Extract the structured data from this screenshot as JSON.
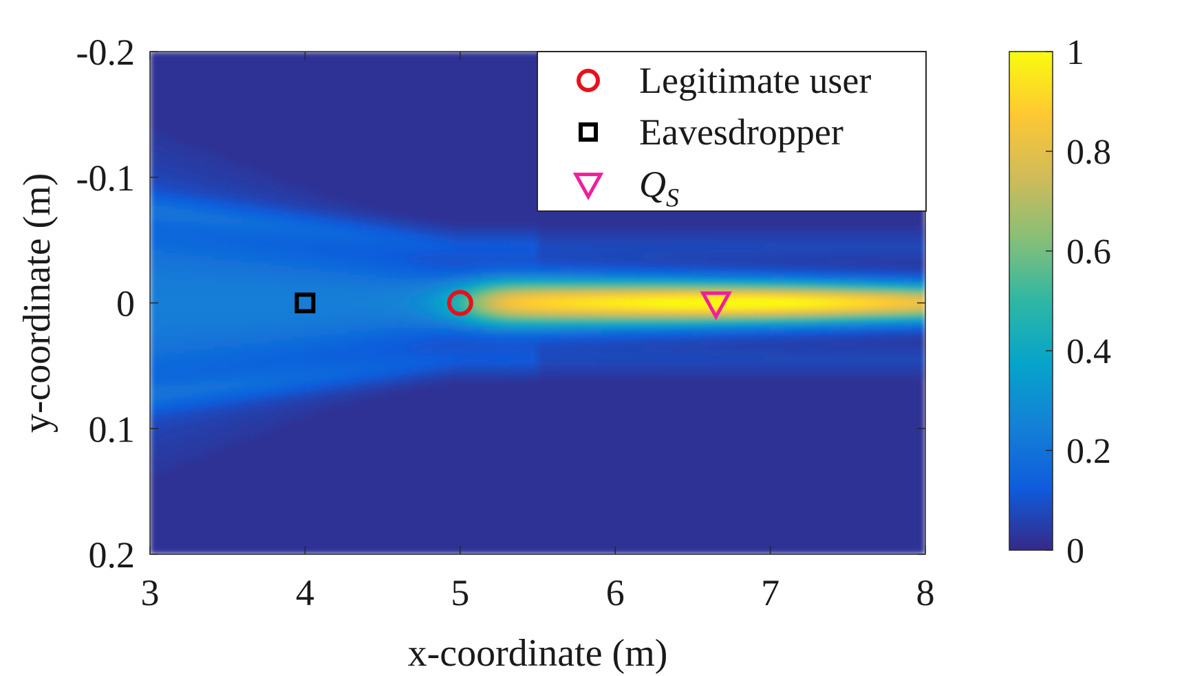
{
  "chart_data": {
    "type": "heatmap",
    "title": "",
    "xlabel": "x-coordinate (m)",
    "ylabel": "y-coordinate (m)",
    "xlim": [
      3,
      8
    ],
    "ylim": [
      -0.2,
      0.2
    ],
    "y_direction": "reversed",
    "xticks": [
      3,
      4,
      5,
      6,
      7,
      8
    ],
    "xtick_labels": [
      "3",
      "4",
      "5",
      "6",
      "7",
      "8"
    ],
    "yticks": [
      -0.2,
      -0.1,
      0,
      0.1,
      0.2
    ],
    "ytick_labels": [
      "-0.2",
      "-0.1",
      "0",
      "0.1",
      "0.2"
    ],
    "colorbar": {
      "range": [
        0,
        1
      ],
      "ticks": [
        0,
        0.2,
        0.4,
        0.6,
        0.8,
        1
      ],
      "tick_labels": [
        "0",
        "0.2",
        "0.4",
        "0.6",
        "0.8",
        "1"
      ],
      "colormap": "parula",
      "colors": [
        "#352a87",
        "#0f5cdd",
        "#1481d6",
        "#06a4ca",
        "#2eb7a4",
        "#87bf77",
        "#d1bb59",
        "#fec832",
        "#f9fb0e"
      ]
    },
    "field_description": {
      "beam_center_y": 0,
      "peak_x": 6.9,
      "peak_value": 0.95,
      "background_value": 0.02
    },
    "legend": {
      "placement": "top-right",
      "entries": [
        {
          "label": "Legitimate user",
          "marker": "circle",
          "color": "#e8101a"
        },
        {
          "label": "Eavesdropper",
          "marker": "square",
          "color": "#000000"
        },
        {
          "label": "Q",
          "label_subscript": "S",
          "marker": "triangle-down",
          "color": "#f01e9a"
        }
      ]
    },
    "points": [
      {
        "x": 5.0,
        "y": 0
      },
      {
        "x": 4.0,
        "y": 0
      },
      {
        "x": 6.65,
        "y": 0
      }
    ]
  }
}
